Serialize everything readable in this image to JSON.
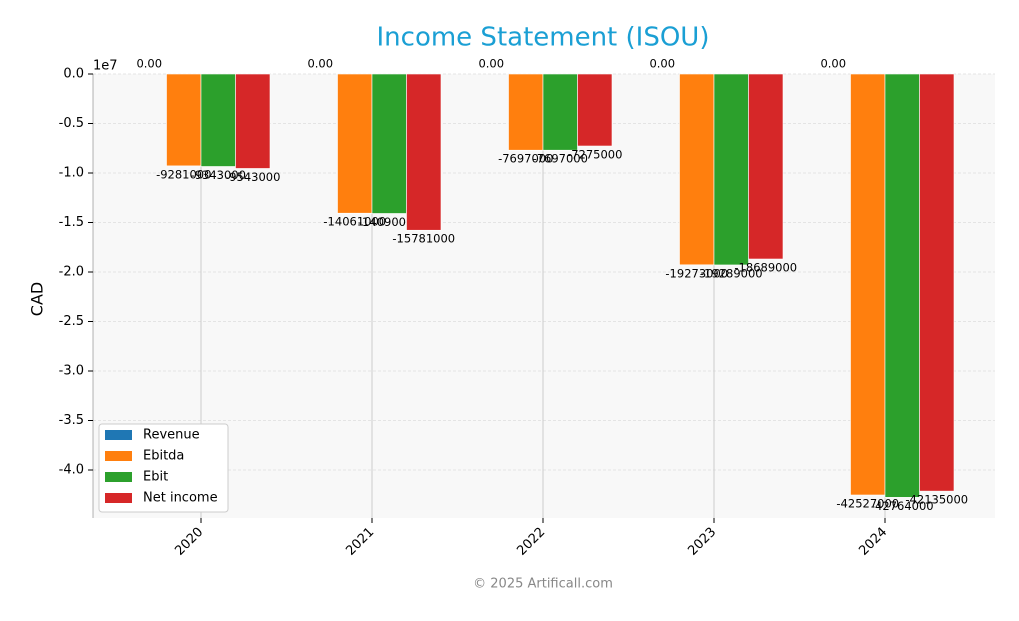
{
  "chart_data": {
    "type": "bar",
    "title": "Income Statement (ISOU)",
    "y_label": "CAD",
    "y_offset_label": "1e7",
    "footer": "© 2025 Artificall.com",
    "categories": [
      "2020",
      "2021",
      "2022",
      "2023",
      "2024"
    ],
    "series": [
      {
        "name": "Revenue",
        "color": "#1f77b4",
        "values": [
          0,
          0,
          0,
          0,
          0
        ],
        "value_labels": [
          "0.00",
          "0.00",
          "0.00",
          "0.00",
          "0.00"
        ]
      },
      {
        "name": "Ebitda",
        "color": "#ff7f0e",
        "values": [
          -9281000,
          -14061000,
          -7697000,
          -19273000,
          -42527000
        ]
      },
      {
        "name": "Ebit",
        "color": "#2ca02c",
        "values": [
          -9343000,
          -14090000,
          -7697000,
          -19289000,
          -42764000
        ]
      },
      {
        "name": "Net income",
        "color": "#d62728",
        "values": [
          -9543000,
          -15781000,
          -7275000,
          -18689000,
          -42135000
        ]
      }
    ],
    "ylim": [
      -44850000,
      0
    ],
    "yticks": [
      {
        "value": 0,
        "label": "0.0"
      },
      {
        "value": -5000000,
        "label": "-0.5"
      },
      {
        "value": -10000000,
        "label": "-1.0"
      },
      {
        "value": -15000000,
        "label": "-1.5"
      },
      {
        "value": -20000000,
        "label": "-2.0"
      },
      {
        "value": -25000000,
        "label": "-2.5"
      },
      {
        "value": -30000000,
        "label": "-3.0"
      },
      {
        "value": -35000000,
        "label": "-3.5"
      },
      {
        "value": -40000000,
        "label": "-4.0"
      }
    ],
    "grid": true,
    "legend": "lower left"
  }
}
